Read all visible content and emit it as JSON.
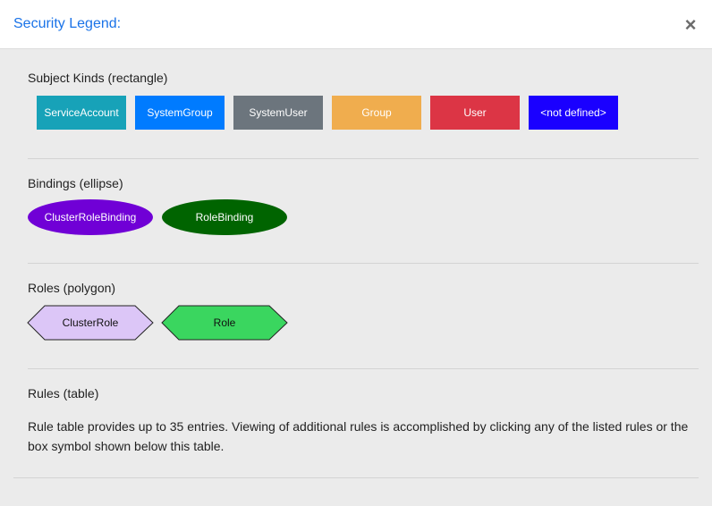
{
  "dialog": {
    "title": "Security Legend:",
    "close_symbol": "×"
  },
  "subject_kinds": {
    "title": "Subject Kinds (rectangle)",
    "items": [
      {
        "label": "ServiceAccount",
        "color": "#17a2b8"
      },
      {
        "label": "SystemGroup",
        "color": "#007bff"
      },
      {
        "label": "SystemUser",
        "color": "#6c757d"
      },
      {
        "label": "Group",
        "color": "#f0ad4e"
      },
      {
        "label": "User",
        "color": "#dc3545"
      },
      {
        "label": "<not defined>",
        "color": "#1a00ff"
      }
    ]
  },
  "bindings": {
    "title": "Bindings (ellipse)",
    "items": [
      {
        "label": "ClusterRoleBinding",
        "color": "#7000d6"
      },
      {
        "label": "RoleBinding",
        "color": "#006400"
      }
    ]
  },
  "roles": {
    "title": "Roles (polygon)",
    "items": [
      {
        "label": "ClusterRole",
        "color": "#dcc6f7"
      },
      {
        "label": "Role",
        "color": "#3ad65f"
      }
    ]
  },
  "rules": {
    "title": "Rules (table)",
    "text": "Rule table provides up to 35 entries. Viewing of additional rules is accomplished by clicking any of the listed rules or the box symbol shown below this table."
  }
}
